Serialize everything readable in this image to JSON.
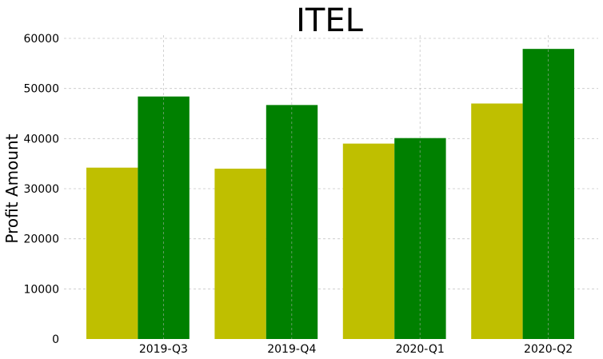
{
  "chart_data": {
    "type": "bar",
    "title": "ITEL",
    "xlabel": "",
    "ylabel": "Profit Amount",
    "categories": [
      "2019-Q3",
      "2019-Q4",
      "2020-Q1",
      "2020-Q2"
    ],
    "series": [
      {
        "values": [
          34200,
          34000,
          39000,
          47000
        ],
        "color": "#bfbf00"
      },
      {
        "values": [
          48400,
          46700,
          40100,
          57900
        ],
        "color": "#008000"
      }
    ],
    "ylim": [
      0,
      60000
    ],
    "yticks": [
      0,
      10000,
      20000,
      30000,
      40000,
      50000,
      60000
    ],
    "grid": true,
    "legend": "none"
  }
}
